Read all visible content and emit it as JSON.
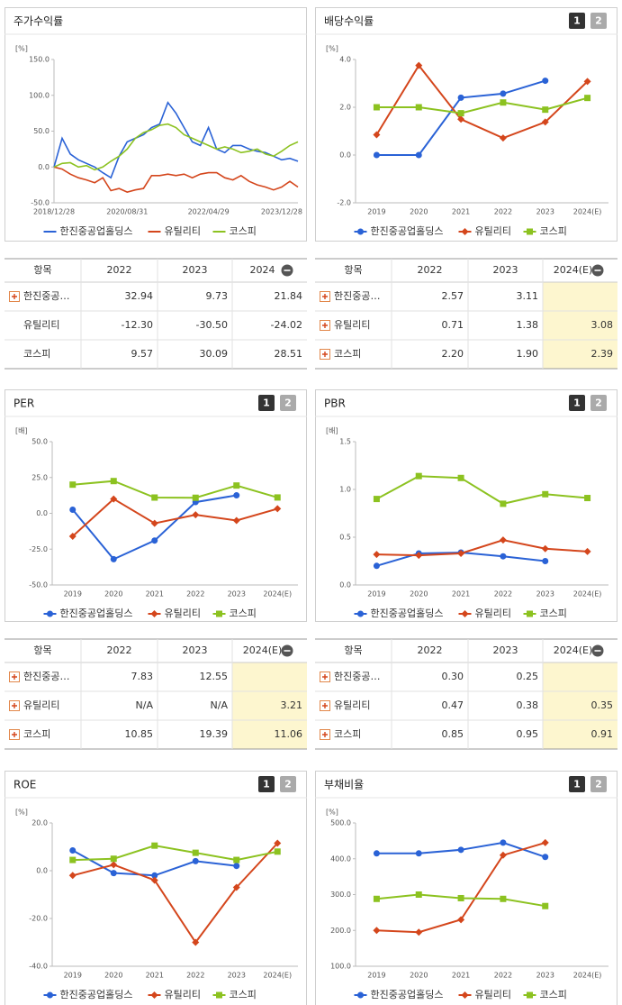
{
  "chart_data": [
    {
      "type": "line",
      "title": "주가수익률",
      "y_unit": "[%]",
      "markers": false,
      "categories": [
        "2018/12/28",
        null,
        null,
        null,
        null,
        null,
        null,
        null,
        null,
        "2020/08/31",
        null,
        null,
        null,
        null,
        null,
        null,
        null,
        null,
        null,
        "2022/04/29",
        null,
        null,
        null,
        null,
        null,
        null,
        null,
        null,
        "2023/12/28",
        null,
        null
      ],
      "series": [
        {
          "name": "한진중공업홀딩스",
          "color": "#2a62d6",
          "values": [
            0,
            40,
            18,
            10,
            5,
            0,
            -8,
            -15,
            15,
            35,
            40,
            45,
            55,
            60,
            90,
            75,
            55,
            35,
            30,
            55,
            25,
            20,
            30,
            30,
            25,
            22,
            20,
            15,
            10,
            12,
            8
          ]
        },
        {
          "name": "유틸리티",
          "color": "#d4461c",
          "values": [
            0,
            -3,
            -10,
            -15,
            -18,
            -22,
            -15,
            -33,
            -30,
            -35,
            -32,
            -30,
            -12,
            -12,
            -10,
            -12,
            -10,
            -15,
            -10,
            -8,
            -8,
            -15,
            -18,
            -12,
            -20,
            -25,
            -28,
            -32,
            -28,
            -20,
            -28
          ]
        },
        {
          "name": "코스피",
          "color": "#8cc220",
          "values": [
            0,
            5,
            6,
            0,
            2,
            -4,
            0,
            8,
            15,
            25,
            40,
            48,
            52,
            58,
            60,
            55,
            45,
            40,
            35,
            30,
            25,
            28,
            25,
            20,
            22,
            25,
            18,
            15,
            22,
            30,
            35
          ]
        }
      ],
      "ylim": [
        -50,
        150
      ],
      "yticks": [
        {
          "value": 150,
          "label": "150.0"
        },
        {
          "value": 100,
          "label": "100.0"
        },
        {
          "value": 50,
          "label": "50.0"
        },
        {
          "value": 0,
          "label": "0.0"
        },
        {
          "value": -50,
          "label": "-50.0"
        }
      ]
    },
    {
      "type": "line",
      "title": "배당수익률",
      "y_unit": "[%]",
      "markers": true,
      "toggles": [
        "1",
        "2"
      ],
      "categories": [
        "2019",
        "2020",
        "2021",
        "2022",
        "2023",
        "2024(E)"
      ],
      "series": [
        {
          "name": "한진중공업홀딩스",
          "color": "#2a62d6",
          "values": [
            0.0,
            0.0,
            2.4,
            2.57,
            3.11,
            null
          ]
        },
        {
          "name": "유틸리티",
          "color": "#d4461c",
          "values": [
            0.85,
            3.75,
            1.5,
            0.71,
            1.38,
            3.08
          ]
        },
        {
          "name": "코스피",
          "color": "#8cc220",
          "values": [
            2.0,
            2.0,
            1.75,
            2.2,
            1.9,
            2.39
          ]
        }
      ],
      "ylim": [
        -2,
        4
      ],
      "yticks": [
        {
          "value": 4,
          "label": "4.0"
        },
        {
          "value": 2,
          "label": "2.0"
        },
        {
          "value": 0,
          "label": "0.0"
        },
        {
          "value": -2,
          "label": "-2.0"
        }
      ]
    },
    {
      "type": "line",
      "title": "PER",
      "y_unit": "[배]",
      "markers": true,
      "toggles": [
        "1",
        "2"
      ],
      "categories": [
        "2019",
        "2020",
        "2021",
        "2022",
        "2023",
        "2024(E)"
      ],
      "series": [
        {
          "name": "한진중공업홀딩스",
          "color": "#2a62d6",
          "values": [
            2.5,
            -32,
            -19,
            7.83,
            12.55,
            null
          ]
        },
        {
          "name": "유틸리티",
          "color": "#d4461c",
          "values": [
            -16,
            10,
            -7,
            -1,
            -5,
            3.21
          ]
        },
        {
          "name": "코스피",
          "color": "#8cc220",
          "values": [
            20,
            22.5,
            11,
            10.85,
            19.39,
            11.06
          ]
        }
      ],
      "ylim": [
        -50,
        50
      ],
      "yticks": [
        {
          "value": 50,
          "label": "50.0"
        },
        {
          "value": 25,
          "label": "25.0"
        },
        {
          "value": 0,
          "label": "0.0"
        },
        {
          "value": -25,
          "label": "-25.0"
        },
        {
          "value": -50,
          "label": "-50.0"
        }
      ]
    },
    {
      "type": "line",
      "title": "PBR",
      "y_unit": "[배]",
      "markers": true,
      "toggles": [
        "1",
        "2"
      ],
      "categories": [
        "2019",
        "2020",
        "2021",
        "2022",
        "2023",
        "2024(E)"
      ],
      "series": [
        {
          "name": "한진중공업홀딩스",
          "color": "#2a62d6",
          "values": [
            0.2,
            0.33,
            0.34,
            0.3,
            0.25,
            null
          ]
        },
        {
          "name": "유틸리티",
          "color": "#d4461c",
          "values": [
            0.32,
            0.31,
            0.33,
            0.47,
            0.38,
            0.35
          ]
        },
        {
          "name": "코스피",
          "color": "#8cc220",
          "values": [
            0.9,
            1.14,
            1.12,
            0.85,
            0.95,
            0.91
          ]
        }
      ],
      "ylim": [
        0,
        1.5
      ],
      "yticks": [
        1.5,
        {
          "value": 1,
          "label": "1.0"
        },
        0.5,
        {
          "value": 0,
          "label": "0.0"
        }
      ]
    },
    {
      "type": "line",
      "title": "ROE",
      "y_unit": "[%]",
      "markers": true,
      "toggles": [
        "1",
        "2"
      ],
      "categories": [
        "2019",
        "2020",
        "2021",
        "2022",
        "2023",
        "2024(E)"
      ],
      "series": [
        {
          "name": "한진중공업홀딩스",
          "color": "#2a62d6",
          "values": [
            8.5,
            -1,
            -2,
            4,
            2,
            null
          ]
        },
        {
          "name": "유틸리티",
          "color": "#d4461c",
          "values": [
            -2,
            2.5,
            -4,
            -30,
            -7,
            11.5
          ]
        },
        {
          "name": "코스피",
          "color": "#8cc220",
          "values": [
            4.5,
            5,
            10.5,
            7.5,
            4.5,
            8
          ]
        }
      ],
      "ylim": [
        -40,
        20
      ],
      "yticks": [
        {
          "value": 20,
          "label": "20.0"
        },
        {
          "value": 0,
          "label": "0.0"
        },
        {
          "value": -20,
          "label": "-20.0"
        },
        {
          "value": -40,
          "label": "-40.0"
        }
      ]
    },
    {
      "type": "line",
      "title": "부채비율",
      "y_unit": "[%]",
      "markers": true,
      "toggles": [
        "1",
        "2"
      ],
      "categories": [
        "2019",
        "2020",
        "2021",
        "2022",
        "2023",
        "2024(E)"
      ],
      "series": [
        {
          "name": "한진중공업홀딩스",
          "color": "#2a62d6",
          "values": [
            415,
            415,
            425,
            445,
            405,
            null
          ]
        },
        {
          "name": "유틸리티",
          "color": "#d4461c",
          "values": [
            200,
            195,
            230,
            410,
            445,
            null
          ]
        },
        {
          "name": "코스피",
          "color": "#8cc220",
          "values": [
            288,
            300,
            290,
            288,
            268,
            null
          ]
        }
      ],
      "ylim": [
        100,
        500
      ],
      "yticks": [
        {
          "value": 500,
          "label": "500.0"
        },
        {
          "value": 400,
          "label": "400.0"
        },
        {
          "value": 300,
          "label": "300.0"
        },
        {
          "value": 200,
          "label": "200.0"
        },
        {
          "value": 100,
          "label": "100.0"
        }
      ]
    }
  ],
  "tables": [
    {
      "columns": [
        "항목",
        "2022",
        "2023",
        "2024"
      ],
      "rows": [
        [
          "한진중공…",
          "32.94",
          "9.73",
          "21.84"
        ],
        [
          "유틸리티",
          "-12.30",
          "-30.50",
          "-24.02"
        ],
        [
          "코스피",
          "9.57",
          "30.09",
          "28.51"
        ]
      ]
    },
    {
      "columns": [
        "항목",
        "2022",
        "2023",
        "2024(E)"
      ],
      "rows": [
        [
          "한진중공…",
          "2.57",
          "3.11",
          ""
        ],
        [
          "유틸리티",
          "0.71",
          "1.38",
          "3.08"
        ],
        [
          "코스피",
          "2.20",
          "1.90",
          "2.39"
        ]
      ]
    },
    {
      "columns": [
        "항목",
        "2022",
        "2023",
        "2024(E)"
      ],
      "rows": [
        [
          "한진중공…",
          "7.83",
          "12.55",
          ""
        ],
        [
          "유틸리티",
          "N/A",
          "N/A",
          "3.21"
        ],
        [
          "코스피",
          "10.85",
          "19.39",
          "11.06"
        ]
      ]
    },
    {
      "columns": [
        "항목",
        "2022",
        "2023",
        "2024(E)"
      ],
      "rows": [
        [
          "한진중공…",
          "0.30",
          "0.25",
          ""
        ],
        [
          "유틸리티",
          "0.47",
          "0.38",
          "0.35"
        ],
        [
          "코스피",
          "0.85",
          "0.95",
          "0.91"
        ]
      ]
    }
  ]
}
